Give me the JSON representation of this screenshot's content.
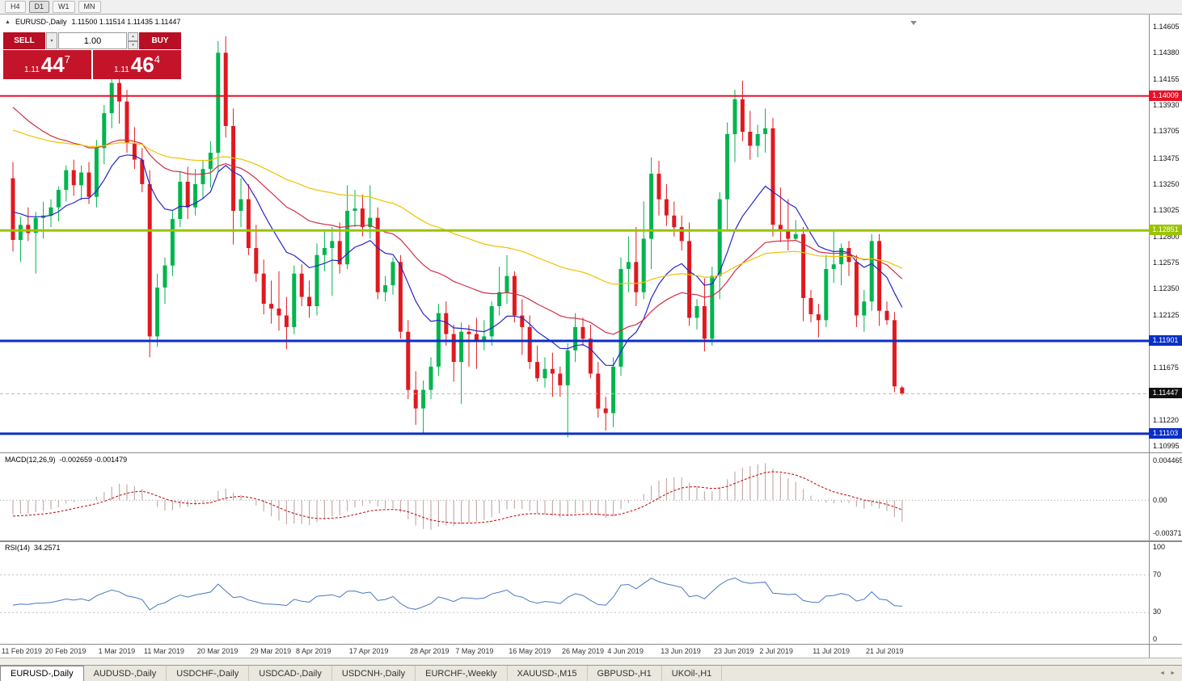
{
  "toolbar": {
    "timeframes": [
      "H4",
      "D1",
      "W1",
      "MN"
    ],
    "active": "D1"
  },
  "header": {
    "title": "EURUSD-,Daily",
    "ohlc": "1.11500 1.11514 1.11435 1.11447"
  },
  "icons": {
    "collapse": "▲",
    "dropdown": "▾",
    "spin_up": "▴",
    "spin_down": "▾",
    "tab_left": "◄",
    "tab_right": "►"
  },
  "trade_panel": {
    "sell_label": "SELL",
    "buy_label": "BUY",
    "volume": "1.00",
    "sell_price": {
      "int": "1.11",
      "pips": "44",
      "pipette": "7"
    },
    "buy_price": {
      "int": "1.11",
      "pips": "46",
      "pipette": "4"
    }
  },
  "price_axis": {
    "labels": [
      "1.14605",
      "1.14380",
      "1.14155",
      "1.13930",
      "1.13705",
      "1.13475",
      "1.13250",
      "1.13025",
      "1.12800",
      "1.12575",
      "1.12350",
      "1.12125",
      "1.11675",
      "1.11220",
      "1.10995"
    ],
    "tags": [
      {
        "text": "1.14009",
        "price": 1.14009,
        "bg": "#e8112a"
      },
      {
        "text": "1.12851",
        "price": 1.12851,
        "bg": "#9cc303"
      },
      {
        "text": "1.11901",
        "price": 1.11901,
        "bg": "#0a2fc8"
      },
      {
        "text": "1.11447",
        "price": 1.11447,
        "bg": "#101010"
      },
      {
        "text": "1.11103",
        "price": 1.11103,
        "bg": "#0a2fc8"
      }
    ]
  },
  "date_axis": {
    "ticks": [
      {
        "label": "11 Feb 2019",
        "i": 0
      },
      {
        "label": "20 Feb 2019",
        "i": 7
      },
      {
        "label": "1 Mar 2019",
        "i": 14
      },
      {
        "label": "11 Mar 2019",
        "i": 20
      },
      {
        "label": "20 Mar 2019",
        "i": 27
      },
      {
        "label": "29 Mar 2019",
        "i": 34
      },
      {
        "label": "8 Apr 2019",
        "i": 40
      },
      {
        "label": "17 Apr 2019",
        "i": 47
      },
      {
        "label": "28 Apr 2019",
        "i": 55
      },
      {
        "label": "7 May 2019",
        "i": 61
      },
      {
        "label": "16 May 2019",
        "i": 68
      },
      {
        "label": "26 May 2019",
        "i": 75
      },
      {
        "label": "4 Jun 2019",
        "i": 81
      },
      {
        "label": "13 Jun 2019",
        "i": 88
      },
      {
        "label": "23 Jun 2019",
        "i": 95
      },
      {
        "label": "2 Jul 2019",
        "i": 101
      },
      {
        "label": "11 Jul 2019",
        "i": 108
      },
      {
        "label": "21 Jul 2019",
        "i": 115
      }
    ]
  },
  "indicators": {
    "macd": {
      "label": "MACD(12,26,9)",
      "values": "-0.002659 -0.001479",
      "scale_max": "0.004465",
      "scale_zero": "0.00",
      "scale_min": "-0.003715"
    },
    "rsi": {
      "label": "RSI(14)",
      "value": "34.2571",
      "levels": [
        "100",
        "70",
        "30",
        "0"
      ]
    }
  },
  "tabs": {
    "active_index": 0,
    "items": [
      "EURUSD-,Daily",
      "AUDUSD-,Daily",
      "USDCHF-,Daily",
      "USDCAD-,Daily",
      "USDCNH-,Daily",
      "EURCHF-,Weekly",
      "XAUUSD-,M15",
      "GBPUSD-,H1",
      "UKOil-,H1"
    ]
  },
  "chart_data": {
    "type": "candlestick",
    "symbol": "EURUSD-",
    "timeframe": "Daily",
    "current_ohlc": {
      "open": 1.115,
      "high": 1.11514,
      "low": 1.11435,
      "close": 1.11447
    },
    "ylim": [
      1.1097,
      1.1466
    ],
    "colors": {
      "bull": "#00b44e",
      "bear": "#e0191f"
    },
    "candles": [
      [
        1.133,
        1.1344,
        1.1267,
        1.1277
      ],
      [
        1.1277,
        1.1297,
        1.1258,
        1.129
      ],
      [
        1.129,
        1.1305,
        1.1276,
        1.1283
      ],
      [
        1.1283,
        1.1301,
        1.1248,
        1.1296
      ],
      [
        1.1296,
        1.131,
        1.1278,
        1.1298
      ],
      [
        1.1298,
        1.1312,
        1.1288,
        1.1305
      ],
      [
        1.1305,
        1.1323,
        1.1293,
        1.132
      ],
      [
        1.132,
        1.1341,
        1.131,
        1.1337
      ],
      [
        1.1337,
        1.1346,
        1.1315,
        1.1324
      ],
      [
        1.1324,
        1.1341,
        1.1311,
        1.1335
      ],
      [
        1.1335,
        1.1344,
        1.1308,
        1.1314
      ],
      [
        1.1314,
        1.1363,
        1.1305,
        1.1356
      ],
      [
        1.1356,
        1.1393,
        1.1342,
        1.1386
      ],
      [
        1.1386,
        1.1421,
        1.1373,
        1.1412
      ],
      [
        1.1412,
        1.1419,
        1.1377,
        1.1396
      ],
      [
        1.1396,
        1.1406,
        1.1352,
        1.136
      ],
      [
        1.136,
        1.1374,
        1.1338,
        1.1346
      ],
      [
        1.1346,
        1.1356,
        1.1318,
        1.1325
      ],
      [
        1.1325,
        1.1337,
        1.1176,
        1.1194
      ],
      [
        1.1194,
        1.1248,
        1.1185,
        1.1236
      ],
      [
        1.1236,
        1.1262,
        1.1222,
        1.1255
      ],
      [
        1.1255,
        1.1302,
        1.1246,
        1.1295
      ],
      [
        1.1295,
        1.1336,
        1.1288,
        1.1327
      ],
      [
        1.1327,
        1.134,
        1.1295,
        1.1305
      ],
      [
        1.1305,
        1.1338,
        1.1298,
        1.1325
      ],
      [
        1.1325,
        1.1346,
        1.1312,
        1.1338
      ],
      [
        1.1338,
        1.1362,
        1.1322,
        1.1352
      ],
      [
        1.1352,
        1.1448,
        1.1336,
        1.1438
      ],
      [
        1.1438,
        1.1452,
        1.1365,
        1.1375
      ],
      [
        1.1375,
        1.139,
        1.1273,
        1.1302
      ],
      [
        1.1302,
        1.133,
        1.1288,
        1.1312
      ],
      [
        1.1312,
        1.1325,
        1.1264,
        1.127
      ],
      [
        1.127,
        1.129,
        1.1241,
        1.1248
      ],
      [
        1.1248,
        1.126,
        1.1213,
        1.1222
      ],
      [
        1.1222,
        1.1242,
        1.1205,
        1.1218
      ],
      [
        1.1218,
        1.125,
        1.1199,
        1.1212
      ],
      [
        1.1212,
        1.1228,
        1.1183,
        1.1202
      ],
      [
        1.1202,
        1.1255,
        1.1196,
        1.1248
      ],
      [
        1.1248,
        1.1256,
        1.122,
        1.1228
      ],
      [
        1.1228,
        1.1242,
        1.121,
        1.122
      ],
      [
        1.122,
        1.1274,
        1.1212,
        1.1264
      ],
      [
        1.1264,
        1.1285,
        1.125,
        1.127
      ],
      [
        1.127,
        1.1288,
        1.1229,
        1.1276
      ],
      [
        1.1276,
        1.1292,
        1.1248,
        1.1256
      ],
      [
        1.1256,
        1.1324,
        1.1252,
        1.1302
      ],
      [
        1.1302,
        1.132,
        1.1288,
        1.1304
      ],
      [
        1.1304,
        1.1316,
        1.128,
        1.1288
      ],
      [
        1.1288,
        1.1324,
        1.1278,
        1.1296
      ],
      [
        1.1296,
        1.1305,
        1.1226,
        1.1232
      ],
      [
        1.1232,
        1.1246,
        1.1224,
        1.1238
      ],
      [
        1.1238,
        1.1262,
        1.123,
        1.1258
      ],
      [
        1.1258,
        1.1264,
        1.1192,
        1.1198
      ],
      [
        1.1198,
        1.1208,
        1.114,
        1.1148
      ],
      [
        1.1148,
        1.1164,
        1.1118,
        1.1132
      ],
      [
        1.1132,
        1.1156,
        1.1111,
        1.1148
      ],
      [
        1.1148,
        1.1176,
        1.114,
        1.1168
      ],
      [
        1.1168,
        1.1222,
        1.116,
        1.1214
      ],
      [
        1.1214,
        1.1224,
        1.1186,
        1.1196
      ],
      [
        1.1196,
        1.1204,
        1.1155,
        1.1172
      ],
      [
        1.1172,
        1.1206,
        1.1136,
        1.1198
      ],
      [
        1.1198,
        1.1204,
        1.1168,
        1.1196
      ],
      [
        1.1196,
        1.121,
        1.1166,
        1.119
      ],
      [
        1.119,
        1.1208,
        1.1182,
        1.1194
      ],
      [
        1.1194,
        1.1224,
        1.1186,
        1.122
      ],
      [
        1.122,
        1.1254,
        1.1212,
        1.1232
      ],
      [
        1.1232,
        1.1264,
        1.1222,
        1.1246
      ],
      [
        1.1246,
        1.125,
        1.1206,
        1.1212
      ],
      [
        1.1212,
        1.1226,
        1.1178,
        1.1202
      ],
      [
        1.1202,
        1.1212,
        1.1166,
        1.1172
      ],
      [
        1.1172,
        1.1186,
        1.1155,
        1.1158
      ],
      [
        1.1158,
        1.1176,
        1.115,
        1.1166
      ],
      [
        1.1166,
        1.118,
        1.1142,
        1.1162
      ],
      [
        1.1162,
        1.1168,
        1.1142,
        1.1152
      ],
      [
        1.1152,
        1.1188,
        1.1107,
        1.1182
      ],
      [
        1.1182,
        1.1214,
        1.1172,
        1.1202
      ],
      [
        1.1202,
        1.121,
        1.1186,
        1.1192
      ],
      [
        1.1192,
        1.1204,
        1.1158,
        1.1162
      ],
      [
        1.1162,
        1.1172,
        1.1124,
        1.1132
      ],
      [
        1.1132,
        1.1142,
        1.1113,
        1.1128
      ],
      [
        1.1128,
        1.1176,
        1.1116,
        1.1168
      ],
      [
        1.1168,
        1.1262,
        1.116,
        1.1252
      ],
      [
        1.1252,
        1.128,
        1.1232,
        1.1258
      ],
      [
        1.1258,
        1.1288,
        1.122,
        1.1232
      ],
      [
        1.1232,
        1.131,
        1.1226,
        1.1278
      ],
      [
        1.1278,
        1.1348,
        1.1252,
        1.1334
      ],
      [
        1.1334,
        1.1345,
        1.1298,
        1.1312
      ],
      [
        1.1312,
        1.1325,
        1.1289,
        1.1298
      ],
      [
        1.1298,
        1.131,
        1.128,
        1.1288
      ],
      [
        1.1288,
        1.1298,
        1.1268,
        1.1276
      ],
      [
        1.1276,
        1.1292,
        1.1203,
        1.121
      ],
      [
        1.121,
        1.1226,
        1.12,
        1.122
      ],
      [
        1.122,
        1.1244,
        1.1181,
        1.1192
      ],
      [
        1.1192,
        1.1254,
        1.1186,
        1.1246
      ],
      [
        1.1246,
        1.1318,
        1.1226,
        1.1312
      ],
      [
        1.1312,
        1.1378,
        1.1286,
        1.1368
      ],
      [
        1.1368,
        1.1406,
        1.1344,
        1.1398
      ],
      [
        1.1398,
        1.1414,
        1.1362,
        1.137
      ],
      [
        1.137,
        1.1388,
        1.1346,
        1.1358
      ],
      [
        1.1358,
        1.1376,
        1.1348,
        1.1368
      ],
      [
        1.1368,
        1.139,
        1.1352,
        1.1373
      ],
      [
        1.1373,
        1.1382,
        1.128,
        1.129
      ],
      [
        1.129,
        1.1322,
        1.1275,
        1.1285
      ],
      [
        1.1285,
        1.1312,
        1.1268,
        1.1278
      ],
      [
        1.1278,
        1.1294,
        1.1276,
        1.1282
      ],
      [
        1.1282,
        1.1288,
        1.1207,
        1.1227
      ],
      [
        1.1227,
        1.1234,
        1.1206,
        1.1213
      ],
      [
        1.1213,
        1.1222,
        1.1193,
        1.1208
      ],
      [
        1.1208,
        1.1264,
        1.1202,
        1.1252
      ],
      [
        1.1252,
        1.1286,
        1.124,
        1.1256
      ],
      [
        1.1256,
        1.1274,
        1.1238,
        1.127
      ],
      [
        1.127,
        1.1276,
        1.1246,
        1.1258
      ],
      [
        1.1258,
        1.1264,
        1.1202,
        1.1212
      ],
      [
        1.1212,
        1.1234,
        1.1198,
        1.1224
      ],
      [
        1.1224,
        1.1282,
        1.1216,
        1.1276
      ],
      [
        1.1276,
        1.1282,
        1.1203,
        1.1216
      ],
      [
        1.1216,
        1.1224,
        1.1204,
        1.1208
      ],
      [
        1.1208,
        1.1215,
        1.1146,
        1.1151
      ],
      [
        1.115,
        1.11514,
        1.11435,
        1.11447
      ]
    ],
    "hlines": [
      {
        "price": 1.14009,
        "color": "#e8112a",
        "h": 2,
        "style": "solid"
      },
      {
        "price": 1.12851,
        "color": "#9cc303",
        "h": 3,
        "style": "solid"
      },
      {
        "price": 1.11901,
        "color": "#0a2fc8",
        "h": 3,
        "style": "solid"
      },
      {
        "price": 1.11103,
        "color": "#0a2fc8",
        "h": 3,
        "style": "solid"
      },
      {
        "price": 1.11447,
        "color": "#b8b8b8",
        "h": 1,
        "style": "dashed"
      }
    ],
    "moving_averages": [
      {
        "name": "fast",
        "period": 13,
        "color": "#2626c9",
        "seed": 1.1305
      },
      {
        "name": "medium",
        "period": 34,
        "color": "#d22e46",
        "seed": 1.1398
      },
      {
        "name": "slow",
        "period": 75,
        "color": "#edc301",
        "seed": 1.1374
      }
    ],
    "macd_seeds": {
      "ema12": 1.1298,
      "ema26": 1.1313,
      "signal": -0.0018
    },
    "rsi_seed": {
      "gain": 0.0022,
      "loss": 0.0032
    }
  }
}
